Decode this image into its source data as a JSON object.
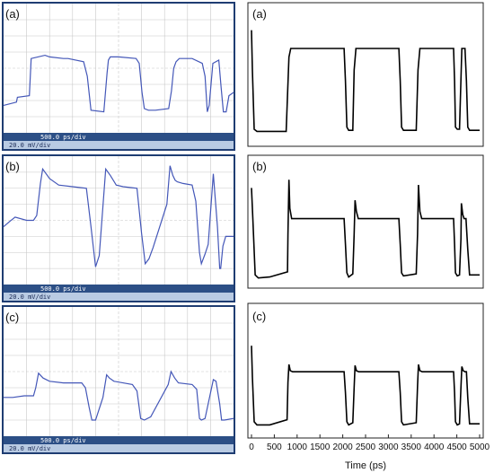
{
  "colors": {
    "scope_frame": "#1f3d72",
    "scope_bar": "#2c4f86",
    "scope_bar_light": "#b9cbe3",
    "scope_trace": "#4457b8",
    "scope_grid": "#c8c8c8",
    "sim_trace": "#000000"
  },
  "chart_data": [
    {
      "id": "scope-a",
      "type": "line",
      "panel_label": "(a)",
      "timebase_label": "500.0 ps/div",
      "voltage_label": "20.0 mV/div",
      "xlim": [
        0,
        5000
      ],
      "ylim": [
        0,
        8
      ],
      "series": [
        {
          "x": [
            0,
            280,
            300,
            560,
            600,
            900,
            1000,
            1300,
            1400,
            1740,
            1820,
            1900,
            2180,
            2250,
            2280,
            2320,
            2500,
            2880,
            2950,
            3010,
            3060,
            3150,
            3300,
            3590,
            3650,
            3700,
            3750,
            3820,
            4100,
            4320,
            4380,
            4430,
            4470,
            4550,
            4680,
            4730,
            4780,
            4840,
            4900,
            5000
          ],
          "y": [
            1.7,
            1.9,
            2.2,
            2.3,
            4.6,
            4.8,
            4.7,
            4.6,
            4.6,
            4.4,
            3.5,
            1.4,
            1.3,
            3.7,
            4.5,
            4.7,
            4.7,
            4.6,
            4.3,
            2.5,
            1.5,
            1.4,
            1.4,
            1.5,
            2.6,
            4.0,
            4.4,
            4.6,
            4.6,
            4.3,
            3.5,
            1.3,
            1.7,
            4.3,
            4.5,
            2.8,
            1.3,
            1.3,
            2.3,
            2.5
          ]
        }
      ]
    },
    {
      "id": "sim-a",
      "type": "line",
      "panel_label": "(a)",
      "xlim": [
        0,
        5000
      ],
      "ylim": [
        0,
        1
      ],
      "series": [
        {
          "x": [
            0,
            20,
            60,
            120,
            760,
            820,
            860,
            2030,
            2060,
            2090,
            2130,
            2220,
            2250,
            2290,
            3230,
            3260,
            3290,
            3330,
            3610,
            3650,
            3690,
            4430,
            4450,
            4470,
            4510,
            4560,
            4610,
            4680,
            4710,
            4740,
            4780,
            5000
          ],
          "y": [
            0.97,
            0.6,
            0.05,
            0.03,
            0.03,
            0.72,
            0.8,
            0.8,
            0.5,
            0.07,
            0.04,
            0.04,
            0.6,
            0.8,
            0.8,
            0.5,
            0.07,
            0.04,
            0.04,
            0.6,
            0.8,
            0.8,
            0.5,
            0.07,
            0.05,
            0.05,
            0.8,
            0.8,
            0.5,
            0.07,
            0.04,
            0.04
          ]
        }
      ]
    },
    {
      "id": "scope-b",
      "type": "line",
      "panel_label": "(b)",
      "timebase_label": "500.0 ps/div",
      "voltage_label": "20.0 mV/div",
      "xlim": [
        0,
        5000
      ],
      "ylim": [
        0,
        8
      ],
      "series": [
        {
          "x": [
            0,
            120,
            250,
            500,
            650,
            720,
            800,
            850,
            1000,
            1200,
            1500,
            1800,
            1900,
            2000,
            2080,
            2220,
            2320,
            2450,
            2600,
            2900,
            3000,
            3080,
            3160,
            3250,
            3550,
            3620,
            3680,
            3730,
            3780,
            3900,
            4100,
            4180,
            4260,
            4300,
            4380,
            4450,
            4560,
            4650,
            4700,
            4720,
            4770,
            4830,
            5000
          ],
          "y": [
            3.6,
            3.9,
            4.2,
            4.0,
            4.0,
            4.3,
            6.3,
            7.2,
            6.6,
            6.2,
            6.1,
            6.0,
            3.6,
            1.1,
            1.8,
            7.2,
            6.8,
            6.2,
            6.1,
            6.0,
            3.2,
            1.3,
            1.6,
            2.3,
            5.0,
            7.4,
            6.8,
            6.5,
            6.4,
            6.3,
            6.2,
            5.2,
            2.0,
            1.3,
            1.9,
            2.5,
            6.9,
            3.6,
            1.0,
            1.0,
            2.4,
            3.0,
            3.0
          ]
        }
      ]
    },
    {
      "id": "sim-b",
      "type": "line",
      "panel_label": "(b)",
      "xlim": [
        0,
        5000
      ],
      "ylim": [
        0,
        1
      ],
      "series": [
        {
          "x": [
            0,
            30,
            80,
            150,
            400,
            790,
            800,
            820,
            840,
            880,
            960,
            2030,
            2060,
            2090,
            2130,
            2220,
            2250,
            2270,
            2300,
            2340,
            2380,
            3230,
            3260,
            3290,
            3330,
            3610,
            3640,
            3660,
            3690,
            3730,
            3770,
            4430,
            4450,
            4470,
            4510,
            4560,
            4590,
            4600,
            4630,
            4660,
            4700,
            4740,
            4780,
            5000
          ],
          "y": [
            0.9,
            0.6,
            0.05,
            0.02,
            0.03,
            0.08,
            0.45,
            0.98,
            0.7,
            0.6,
            0.6,
            0.6,
            0.35,
            0.07,
            0.03,
            0.06,
            0.45,
            0.78,
            0.67,
            0.6,
            0.6,
            0.6,
            0.35,
            0.07,
            0.04,
            0.06,
            0.45,
            0.93,
            0.67,
            0.6,
            0.6,
            0.6,
            0.35,
            0.07,
            0.04,
            0.05,
            0.4,
            0.75,
            0.64,
            0.6,
            0.6,
            0.3,
            0.05,
            0.05
          ]
        }
      ]
    },
    {
      "id": "scope-c",
      "type": "line",
      "panel_label": "(c)",
      "timebase_label": "500.0 ps/div",
      "voltage_label": "20.0 mV/div",
      "xlim": [
        0,
        5000
      ],
      "ylim": [
        0,
        8
      ],
      "series": [
        {
          "x": [
            0,
            200,
            450,
            650,
            700,
            760,
            860,
            1000,
            1300,
            1700,
            1780,
            1860,
            1920,
            2000,
            2160,
            2240,
            2300,
            2400,
            2800,
            2900,
            2980,
            3060,
            3200,
            3580,
            3640,
            3720,
            3800,
            4100,
            4200,
            4260,
            4300,
            4380,
            4560,
            4620,
            4700,
            4740,
            4800,
            5000
          ],
          "y": [
            2.4,
            2.4,
            2.5,
            2.5,
            3.0,
            3.9,
            3.6,
            3.4,
            3.3,
            3.3,
            3.0,
            1.8,
            1.0,
            1.0,
            2.4,
            3.8,
            3.6,
            3.4,
            3.2,
            2.8,
            1.1,
            1.0,
            1.2,
            3.2,
            4.0,
            3.6,
            3.3,
            3.2,
            2.9,
            1.1,
            1.0,
            1.1,
            3.5,
            3.4,
            2.0,
            1.0,
            1.0,
            1.1
          ]
        }
      ]
    },
    {
      "id": "sim-c",
      "type": "line",
      "panel_label": "(c)",
      "xlim": [
        0,
        5000
      ],
      "ylim": [
        0,
        1
      ],
      "series": [
        {
          "x": [
            0,
            20,
            60,
            120,
            400,
            780,
            800,
            820,
            850,
            900,
            980,
            2030,
            2060,
            2090,
            2130,
            2220,
            2250,
            2270,
            2300,
            2350,
            3230,
            3260,
            3290,
            3330,
            3610,
            3640,
            3660,
            3690,
            3740,
            4430,
            4450,
            4470,
            4510,
            4560,
            4590,
            4610,
            4640,
            4680,
            4710,
            4740,
            4780,
            5000
          ],
          "y": [
            0.8,
            0.5,
            0.07,
            0.04,
            0.04,
            0.09,
            0.45,
            0.62,
            0.56,
            0.55,
            0.55,
            0.55,
            0.35,
            0.07,
            0.04,
            0.06,
            0.4,
            0.61,
            0.56,
            0.55,
            0.55,
            0.35,
            0.07,
            0.04,
            0.06,
            0.42,
            0.62,
            0.56,
            0.55,
            0.55,
            0.35,
            0.07,
            0.04,
            0.05,
            0.4,
            0.6,
            0.56,
            0.55,
            0.55,
            0.3,
            0.05,
            0.05
          ]
        }
      ],
      "xticks": [
        0,
        500,
        1000,
        1500,
        2000,
        2500,
        3000,
        3500,
        4000,
        4500,
        5000
      ],
      "xlabel": "Time (ps)"
    }
  ]
}
